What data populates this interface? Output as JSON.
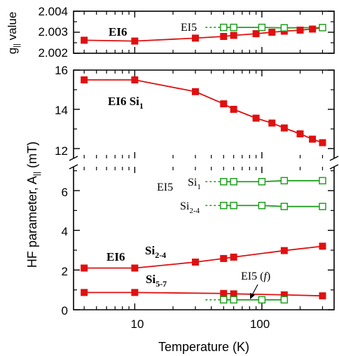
{
  "chart_data": {
    "type": "line",
    "x_axis": {
      "label": "Temperature (K)",
      "scale": "log",
      "range": [
        3.3,
        370
      ],
      "tick_labels": [
        "10",
        "100"
      ],
      "major_ticks": [
        10,
        100
      ],
      "minor_ticks": [
        4,
        5,
        6,
        7,
        8,
        9,
        20,
        30,
        40,
        50,
        60,
        70,
        80,
        90,
        200,
        300
      ]
    },
    "panels": [
      {
        "id": "g",
        "ylabel": "g|| value",
        "ylim": [
          2.002,
          2.004
        ],
        "yticks": [
          2.002,
          2.003,
          2.004
        ],
        "ytick_labels": [
          "2.002",
          "2.003",
          "2.004"
        ],
        "series": [
          {
            "name": "EI6",
            "color": "#e01010",
            "marker": "filled-square",
            "x": [
              4,
              10,
              30,
              50,
              60,
              90,
              120,
              150,
              200,
              250,
              300
            ],
            "y": [
              2.00262,
              2.00258,
              2.00272,
              2.0028,
              2.00285,
              2.00293,
              2.003,
              2.00305,
              2.0031,
              2.00315,
              2.00322
            ]
          },
          {
            "name": "EI5",
            "color": "#20a020",
            "marker": "open-square",
            "x": [
              50,
              60,
              100,
              150,
              300
            ],
            "y": [
              2.00323,
              2.00323,
              2.00323,
              2.00321,
              2.00322
            ]
          }
        ]
      },
      {
        "id": "hf",
        "ylabel": "HF parameter, A|| (mT)",
        "ylim": [
          0,
          16
        ],
        "broken_between": [
          7.5,
          11.5
        ],
        "yticks": [
          0,
          2,
          4,
          6,
          12,
          14,
          16
        ],
        "ytick_labels": [
          "0",
          "2",
          "4",
          "6",
          "12",
          "14",
          "16"
        ],
        "series": [
          {
            "name": "EI6 Si1",
            "color": "#e01010",
            "marker": "filled-square",
            "x": [
              4,
              10,
              30,
              50,
              60,
              90,
              120,
              150,
              200,
              250,
              300
            ],
            "y": [
              15.5,
              15.5,
              14.9,
              14.28,
              14.0,
              13.55,
              13.3,
              13.05,
              12.75,
              12.48,
              12.3
            ]
          },
          {
            "name": "EI5 Si1",
            "color": "#20a020",
            "marker": "open-square",
            "x": [
              50,
              60,
              100,
              150,
              300
            ],
            "y": [
              6.45,
              6.45,
              6.45,
              6.5,
              6.5
            ]
          },
          {
            "name": "EI5 Si2-4",
            "color": "#20a020",
            "marker": "open-square",
            "x": [
              50,
              60,
              100,
              150,
              300
            ],
            "y": [
              5.25,
              5.25,
              5.25,
              5.2,
              5.2
            ]
          },
          {
            "name": "EI6 Si2-4",
            "color": "#e01010",
            "marker": "filled-square",
            "x": [
              4,
              10,
              30,
              50,
              60,
              150,
              300
            ],
            "y": [
              2.1,
              2.1,
              2.4,
              2.58,
              2.65,
              2.98,
              3.2
            ]
          },
          {
            "name": "EI6 Si5-7",
            "color": "#e01010",
            "marker": "filled-square",
            "x": [
              4,
              10,
              50,
              60,
              150,
              300
            ],
            "y": [
              0.87,
              0.87,
              0.82,
              0.8,
              0.75,
              0.7
            ]
          },
          {
            "name": "EI5 (f)",
            "color": "#20a020",
            "marker": "open-square",
            "x": [
              50,
              60,
              100,
              150
            ],
            "y": [
              0.5,
              0.5,
              0.5,
              0.5
            ]
          }
        ]
      }
    ],
    "annotations": {
      "g_ei6": "EI6",
      "g_ei5": "EI5",
      "hf_ei6_si1_a": "EI6 Si",
      "hf_ei6_si1_b": "1",
      "hf_ei5_si1_a": "EI5",
      "hf_ei5_si1_b": "Si",
      "hf_ei5_si1_c": "1",
      "hf_ei5_si24_a": "Si",
      "hf_ei5_si24_b": "2-4",
      "hf_ei6_si24_a": "EI6",
      "hf_ei6_si24_b": "Si",
      "hf_ei6_si24_c": "2-4",
      "hf_si57_a": "Si",
      "hf_si57_b": "5-7",
      "hf_ei5f_a": "EI5 (",
      "hf_ei5f_b": "f",
      "hf_ei5f_c": ")"
    },
    "ylabel_g_main": "g",
    "ylabel_g_sub": "||",
    "ylabel_g_rest": " value",
    "ylabel_hf_main": "HF parameter, A",
    "ylabel_hf_sub": "||",
    "ylabel_hf_rest": " (mT)",
    "colors": {
      "ei6": "#e01010",
      "ei5": "#20a020"
    }
  }
}
